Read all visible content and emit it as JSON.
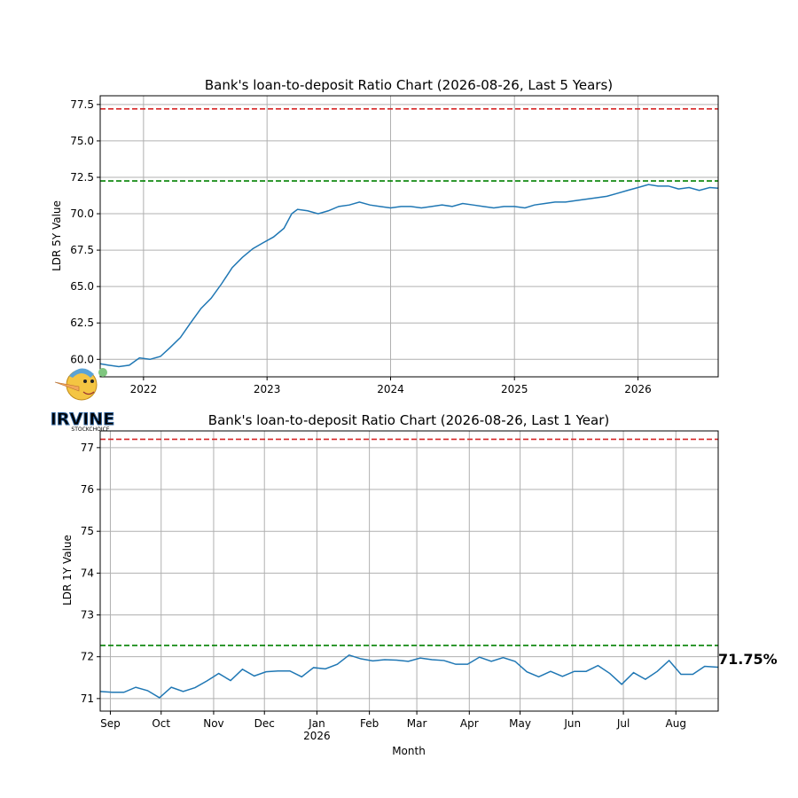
{
  "chart_data": [
    {
      "type": "line",
      "title": "Bank's loan-to-deposit Ratio Chart (2026-08-26, Last 5 Years)",
      "xlabel": "",
      "ylabel": "LDR 5Y Value",
      "xlim": [
        "2021-08-26",
        "2026-08-26"
      ],
      "ylim": [
        58.8,
        78.1
      ],
      "yticks": [
        "60.0",
        "62.5",
        "65.0",
        "67.5",
        "70.0",
        "72.5",
        "75.0",
        "77.5"
      ],
      "xticks": [
        {
          "date": "2022-01-01",
          "label": "2022"
        },
        {
          "date": "2023-01-01",
          "label": "2023"
        },
        {
          "date": "2024-01-01",
          "label": "2024"
        },
        {
          "date": "2025-01-01",
          "label": "2025"
        },
        {
          "date": "2026-01-01",
          "label": "2026"
        }
      ],
      "grid": true,
      "hlines": [
        {
          "y": 77.2,
          "color": "#d62728",
          "style": "dashed"
        },
        {
          "y": 72.25,
          "color": "#008000",
          "style": "dashed"
        }
      ],
      "series": [
        {
          "color": "#1f77b4",
          "x": [
            "2021-08-26",
            "2021-09-20",
            "2021-10-20",
            "2021-11-20",
            "2021-12-20",
            "2022-01-20",
            "2022-02-20",
            "2022-03-20",
            "2022-04-20",
            "2022-05-20",
            "2022-06-20",
            "2022-07-20",
            "2022-08-20",
            "2022-09-20",
            "2022-10-20",
            "2022-11-20",
            "2022-12-20",
            "2023-01-20",
            "2023-02-20",
            "2023-03-15",
            "2023-04-01",
            "2023-05-01",
            "2023-06-01",
            "2023-07-01",
            "2023-08-01",
            "2023-09-01",
            "2023-10-01",
            "2023-11-01",
            "2023-12-01",
            "2024-01-01",
            "2024-02-01",
            "2024-03-01",
            "2024-04-01",
            "2024-05-01",
            "2024-06-01",
            "2024-07-01",
            "2024-08-01",
            "2024-09-01",
            "2024-10-01",
            "2024-11-01",
            "2024-12-01",
            "2025-01-01",
            "2025-02-01",
            "2025-03-01",
            "2025-04-01",
            "2025-05-01",
            "2025-06-01",
            "2025-07-01",
            "2025-08-01",
            "2025-09-01",
            "2025-10-01",
            "2025-11-01",
            "2025-12-01",
            "2026-01-01",
            "2026-02-01",
            "2026-03-01",
            "2026-04-01",
            "2026-05-01",
            "2026-06-01",
            "2026-07-01",
            "2026-08-01",
            "2026-08-26"
          ],
          "y": [
            59.7,
            59.6,
            59.5,
            59.6,
            60.1,
            60.0,
            60.2,
            60.8,
            61.5,
            62.5,
            63.5,
            64.2,
            65.2,
            66.3,
            67.0,
            67.6,
            68.0,
            68.4,
            69.0,
            70.0,
            70.3,
            70.2,
            70.0,
            70.2,
            70.5,
            70.6,
            70.8,
            70.6,
            70.5,
            70.4,
            70.5,
            70.5,
            70.4,
            70.5,
            70.6,
            70.5,
            70.7,
            70.6,
            70.5,
            70.4,
            70.5,
            70.5,
            70.4,
            70.6,
            70.7,
            70.8,
            70.8,
            70.9,
            71.0,
            71.1,
            71.2,
            71.4,
            71.6,
            71.8,
            72.0,
            71.9,
            71.9,
            71.7,
            71.8,
            71.6,
            71.8,
            71.75
          ]
        }
      ]
    },
    {
      "type": "line",
      "title": "Bank's loan-to-deposit Ratio Chart (2026-08-26, Last 1 Year)",
      "xlabel": "Month",
      "ylabel": "LDR 1Y Value",
      "xlim": [
        "2025-08-26",
        "2026-08-26"
      ],
      "ylim": [
        70.7,
        77.4
      ],
      "yticks": [
        "71",
        "72",
        "73",
        "74",
        "75",
        "76",
        "77"
      ],
      "xticks": [
        {
          "date": "2025-09-01",
          "label": "Sep"
        },
        {
          "date": "2025-10-01",
          "label": "Oct"
        },
        {
          "date": "2025-11-01",
          "label": "Nov"
        },
        {
          "date": "2025-12-01",
          "label": "Dec"
        },
        {
          "date": "2026-01-01",
          "label": "Jan",
          "sublabel": "2026"
        },
        {
          "date": "2026-02-01",
          "label": "Feb"
        },
        {
          "date": "2026-03-01",
          "label": "Mar"
        },
        {
          "date": "2026-04-01",
          "label": "Apr"
        },
        {
          "date": "2026-05-01",
          "label": "May"
        },
        {
          "date": "2026-06-01",
          "label": "Jun"
        },
        {
          "date": "2026-07-01",
          "label": "Jul"
        },
        {
          "date": "2026-08-01",
          "label": "Aug"
        }
      ],
      "grid": true,
      "hlines": [
        {
          "y": 77.2,
          "color": "#d62728",
          "style": "dashed"
        },
        {
          "y": 72.27,
          "color": "#008000",
          "style": "dashed"
        }
      ],
      "last_value_label": "71.75%",
      "series": [
        {
          "color": "#1f77b4",
          "x": [
            "2025-08-26",
            "2025-09-02",
            "2025-09-09",
            "2025-09-16",
            "2025-09-23",
            "2025-09-30",
            "2025-10-07",
            "2025-10-14",
            "2025-10-21",
            "2025-10-28",
            "2025-11-04",
            "2025-11-11",
            "2025-11-18",
            "2025-11-25",
            "2025-12-02",
            "2025-12-09",
            "2025-12-16",
            "2025-12-23",
            "2025-12-30",
            "2026-01-06",
            "2026-01-13",
            "2026-01-20",
            "2026-01-27",
            "2026-02-03",
            "2026-02-10",
            "2026-02-17",
            "2026-02-24",
            "2026-03-03",
            "2026-03-10",
            "2026-03-17",
            "2026-03-24",
            "2026-03-31",
            "2026-04-07",
            "2026-04-14",
            "2026-04-21",
            "2026-04-28",
            "2026-05-05",
            "2026-05-12",
            "2026-05-19",
            "2026-05-26",
            "2026-06-02",
            "2026-06-09",
            "2026-06-16",
            "2026-06-23",
            "2026-06-30",
            "2026-07-07",
            "2026-07-14",
            "2026-07-21",
            "2026-07-28",
            "2026-08-04",
            "2026-08-11",
            "2026-08-18",
            "2026-08-26"
          ],
          "y": [
            71.17,
            71.15,
            71.15,
            71.27,
            71.19,
            71.02,
            71.27,
            71.17,
            71.26,
            71.42,
            71.6,
            71.43,
            71.7,
            71.54,
            71.64,
            71.66,
            71.66,
            71.52,
            71.74,
            71.71,
            71.82,
            72.04,
            71.95,
            71.9,
            71.93,
            71.92,
            71.89,
            71.97,
            71.93,
            71.91,
            71.82,
            71.82,
            71.99,
            71.89,
            71.98,
            71.89,
            71.64,
            71.52,
            71.65,
            71.53,
            71.65,
            71.65,
            71.79,
            71.6,
            71.34,
            71.62,
            71.46,
            71.65,
            71.91,
            71.58,
            71.58,
            71.77,
            71.75
          ]
        }
      ]
    }
  ],
  "watermark": {
    "text": "IRVINE",
    "subtext": "STOCKCHOICE"
  }
}
